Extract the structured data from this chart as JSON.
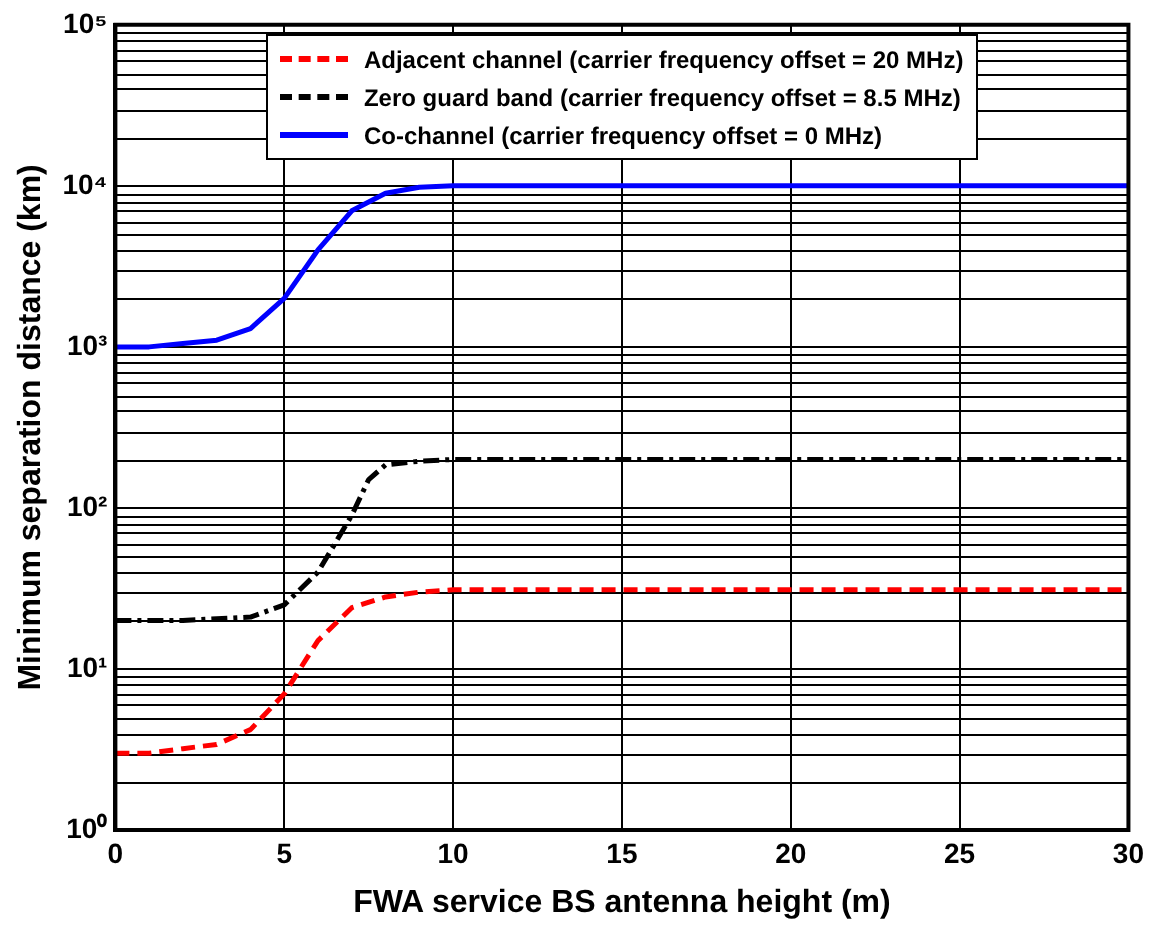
{
  "chart_data": {
    "type": "line",
    "xlabel": "FWA service BS antenna height (m)",
    "ylabel": "Minimum separation distance (km)",
    "xlim": [
      0,
      30
    ],
    "xticks": [
      0,
      5,
      10,
      15,
      20,
      25,
      30
    ],
    "ylim": [
      1,
      100000
    ],
    "yticks": [
      {
        "value": 1,
        "label": "10⁰"
      },
      {
        "value": 10,
        "label": "10¹"
      },
      {
        "value": 100,
        "label": "10²"
      },
      {
        "value": 1000,
        "label": "10³"
      },
      {
        "value": 10000,
        "label": "10⁴"
      },
      {
        "value": 100000,
        "label": "10⁵"
      }
    ],
    "log": "y",
    "grid": true,
    "legend": "top",
    "marker": "none",
    "series": [
      {
        "name": "Adjacent channel (carrier frequency offset = 20 MHz)",
        "color": "#ff0000",
        "line_style": "dashed",
        "x": [
          0,
          1,
          2,
          3,
          4,
          5,
          6,
          7,
          8,
          9,
          10,
          15,
          20,
          25,
          30
        ],
        "values": [
          3,
          3,
          3.2,
          3.4,
          4.2,
          7,
          15,
          24,
          28,
          30,
          31,
          31,
          31,
          31,
          31
        ]
      },
      {
        "name": "Zero guard band (carrier frequency offset = 8.5 MHz)",
        "color": "#000000",
        "line_style": "dashdot",
        "x": [
          0,
          1,
          2,
          3,
          4,
          5,
          6,
          7,
          7.5,
          8,
          9,
          10,
          15,
          20,
          25,
          30
        ],
        "values": [
          20,
          20,
          20,
          20.5,
          21,
          25,
          40,
          90,
          150,
          185,
          195,
          200,
          200,
          200,
          200,
          200
        ]
      },
      {
        "name": "Co-channel (carrier frequency offset = 0 MHz)",
        "color": "#0000ff",
        "line_style": "solid",
        "x": [
          0,
          1,
          2,
          3,
          4,
          5,
          6,
          7,
          8,
          9,
          10,
          15,
          20,
          25,
          30
        ],
        "values": [
          1000,
          1000,
          1050,
          1100,
          1300,
          2000,
          4000,
          7000,
          9000,
          9800,
          10000,
          10000,
          10000,
          10000,
          10000
        ]
      }
    ]
  }
}
